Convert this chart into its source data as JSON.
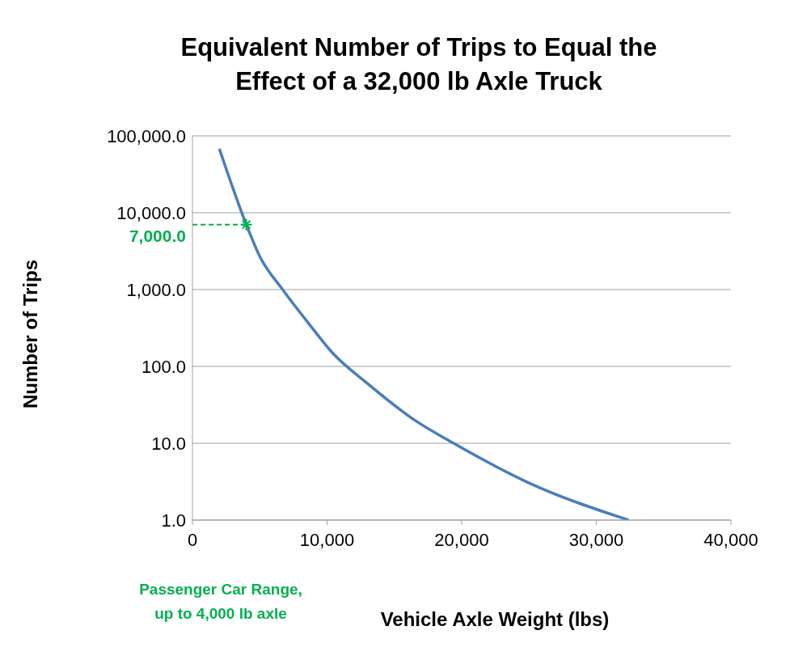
{
  "chart_data": {
    "type": "line",
    "title": "Equivalent Number of Trips to Equal the\nEffect of a 32,000 lb Axle Truck",
    "xlabel": "Vehicle Axle Weight (lbs)",
    "ylabel": "Number of Trips",
    "series": [
      {
        "color": "#4a7ebb",
        "marker": "none",
        "x": [
          2000,
          3000,
          4000,
          5000,
          6700,
          8700,
          10400,
          13000,
          16500,
          19400,
          24900,
          32400
        ],
        "values": [
          68000,
          21000,
          7000,
          2700,
          1000,
          350,
          150,
          60,
          20,
          10,
          3.1,
          1
        ]
      },
      {
        "type": "scatter",
        "color": "#00b050",
        "marker": "cross",
        "x": [
          4000
        ],
        "values": [
          7000
        ]
      }
    ],
    "ref_lines": [
      {
        "axis": "y",
        "value": 7000,
        "label": "7,000.0",
        "color": "#00b050",
        "line_style": "dashed"
      }
    ],
    "annotations": [
      "Passenger Car Range,\nup to 4,000 lb axle"
    ],
    "xlim": [
      0,
      40000
    ],
    "xticks": [
      {
        "value": 0,
        "label": "0"
      },
      {
        "value": 10000,
        "label": "10,000"
      },
      {
        "value": 20000,
        "label": "20,000"
      },
      {
        "value": 30000,
        "label": "30,000"
      },
      {
        "value": 40000,
        "label": "40,000"
      }
    ],
    "ylim": [
      1,
      100000
    ],
    "yticks": [
      {
        "value": 1,
        "label": "1.0"
      },
      {
        "value": 10,
        "label": "10.0"
      },
      {
        "value": 100,
        "label": "100.0"
      },
      {
        "value": 1000,
        "label": "1,000.0"
      },
      {
        "value": 10000,
        "label": "10,000.0"
      },
      {
        "value": 100000,
        "label": "100,000.0"
      }
    ],
    "log": "y",
    "grid": "y"
  }
}
